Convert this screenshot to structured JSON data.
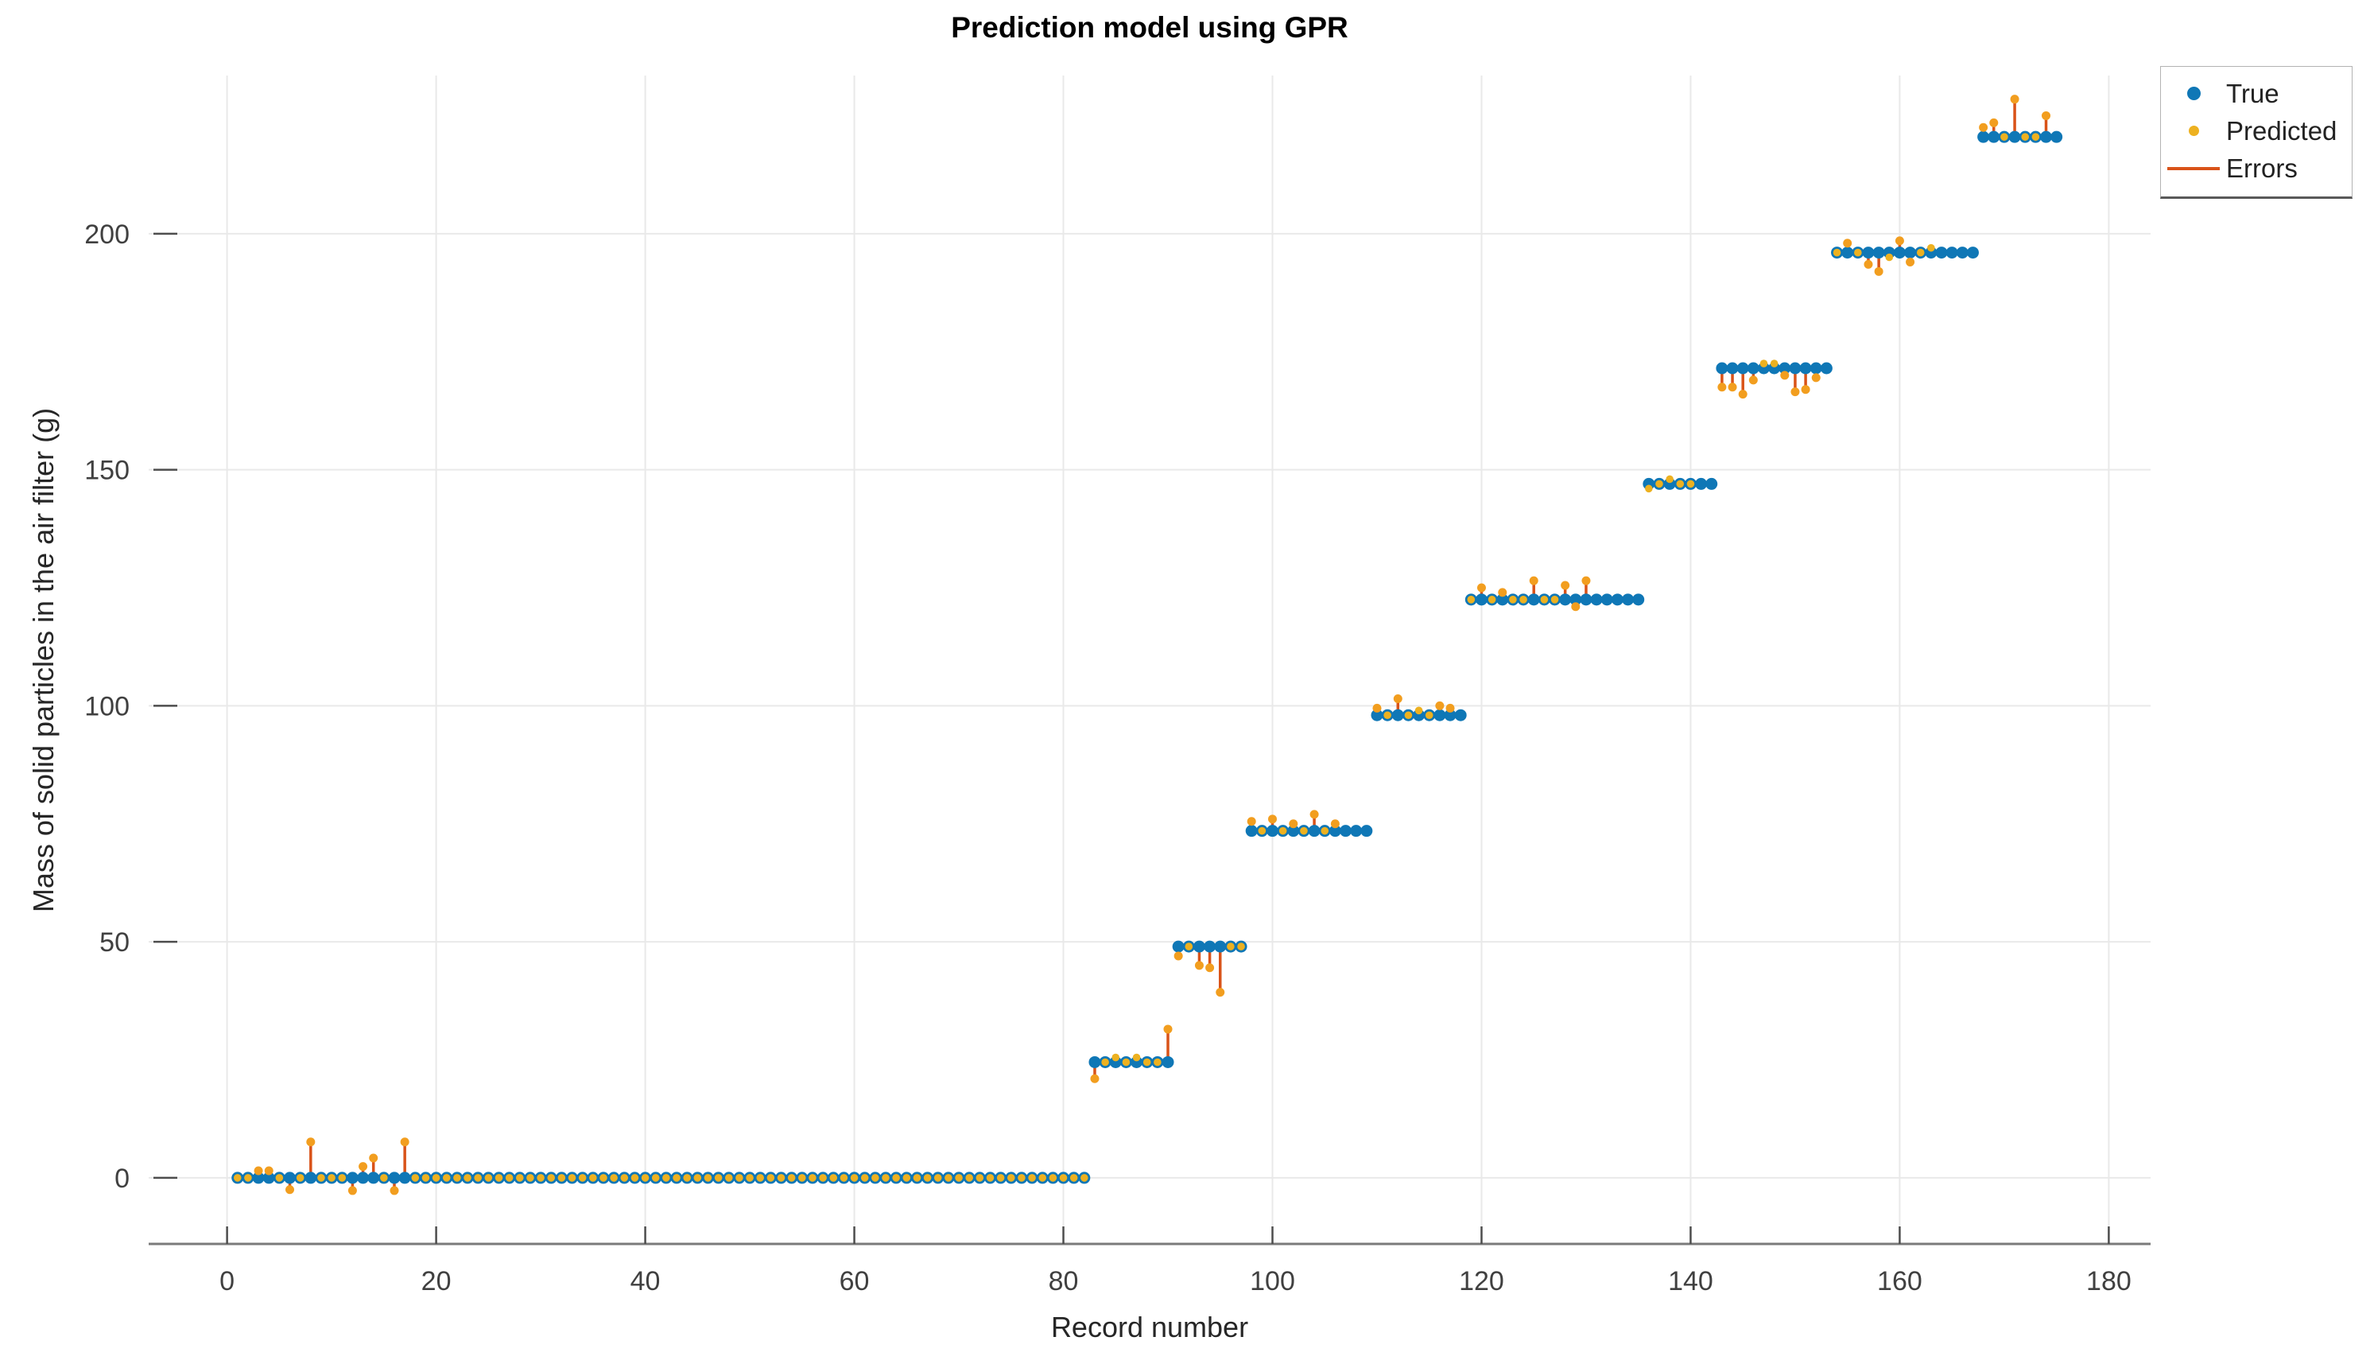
{
  "chart_data": {
    "type": "scatter",
    "title": "Prediction model using GPR",
    "xlabel": "Record number",
    "ylabel": "Mass of solid particles in the air filter (g)",
    "xlim": [
      -7.5,
      184
    ],
    "ylim": [
      -14,
      233.5
    ],
    "xticks": [
      0,
      20,
      40,
      60,
      80,
      100,
      120,
      140,
      160,
      180
    ],
    "yticks": [
      0,
      50,
      100,
      150,
      200
    ],
    "grid": true,
    "legend_position": "top-right",
    "n_records": 175,
    "legend": [
      {
        "label": "True",
        "marker": "dot",
        "color": "#0F77B6"
      },
      {
        "label": "Predicted",
        "marker": "dot",
        "color": "#EDB120"
      },
      {
        "label": "Errors",
        "marker": "line",
        "color": "#D95319"
      }
    ],
    "series_description": "True mass is a staircase over record number; Predicted nearly matches True; Errors are vertical stems from True to Predicted.",
    "steps": [
      {
        "from": 1,
        "to": 82,
        "value": 0
      },
      {
        "from": 83,
        "to": 90,
        "value": 24.5
      },
      {
        "from": 91,
        "to": 97,
        "value": 49
      },
      {
        "from": 98,
        "to": 109,
        "value": 73.5
      },
      {
        "from": 110,
        "to": 118,
        "value": 98
      },
      {
        "from": 119,
        "to": 135,
        "value": 122.5
      },
      {
        "from": 136,
        "to": 142,
        "value": 147
      },
      {
        "from": 143,
        "to": 153,
        "value": 171.5
      },
      {
        "from": 154,
        "to": 167,
        "value": 196
      },
      {
        "from": 168,
        "to": 175,
        "value": 220.5
      }
    ],
    "errors": {
      "3": 1.5,
      "4": 1.5,
      "6": -2.5,
      "8": 7.6,
      "12": -2.7,
      "13": 2.4,
      "14": 4.2,
      "16": -2.7,
      "17": 7.6,
      "83": -3.5,
      "85": 1,
      "87": 1,
      "90": 7,
      "91": -2,
      "93": -4,
      "94": -4.5,
      "95": -9.7,
      "98": 2,
      "100": 2.5,
      "102": 1.5,
      "104": 3.5,
      "106": 1.5,
      "110": 1.5,
      "112": 3.5,
      "114": 1,
      "116": 2,
      "117": 1.5,
      "120": 2.5,
      "122": 1.5,
      "125": 4,
      "128": 3,
      "129": -1.5,
      "130": 4,
      "136": -1,
      "138": 1,
      "143": -4,
      "144": -4,
      "145": -5.5,
      "146": -2.5,
      "147": 1,
      "148": 1,
      "149": -1.5,
      "150": -5,
      "151": -4.5,
      "152": -2,
      "155": 2,
      "157": -2.5,
      "158": -4,
      "159": -1,
      "160": 2.5,
      "161": -2,
      "163": 1,
      "168": 2,
      "169": 3,
      "171": 8,
      "174": 4.5
    },
    "pred_hidden": [
      107,
      108,
      109,
      118,
      131,
      132,
      133,
      134,
      135,
      141,
      142,
      153,
      164,
      165,
      166,
      167,
      175
    ],
    "colors": {
      "true": "#0F77B6",
      "predicted": "#EDB120",
      "error_line": "#D95319",
      "error_tip": "#F29E1F",
      "grid": "#E9E9E9",
      "axis_line": "#7A7A7A",
      "tick_mark": "#4D4D4D",
      "tick_label": "#404040",
      "axis_label": "#262626",
      "title": "#000000"
    }
  }
}
